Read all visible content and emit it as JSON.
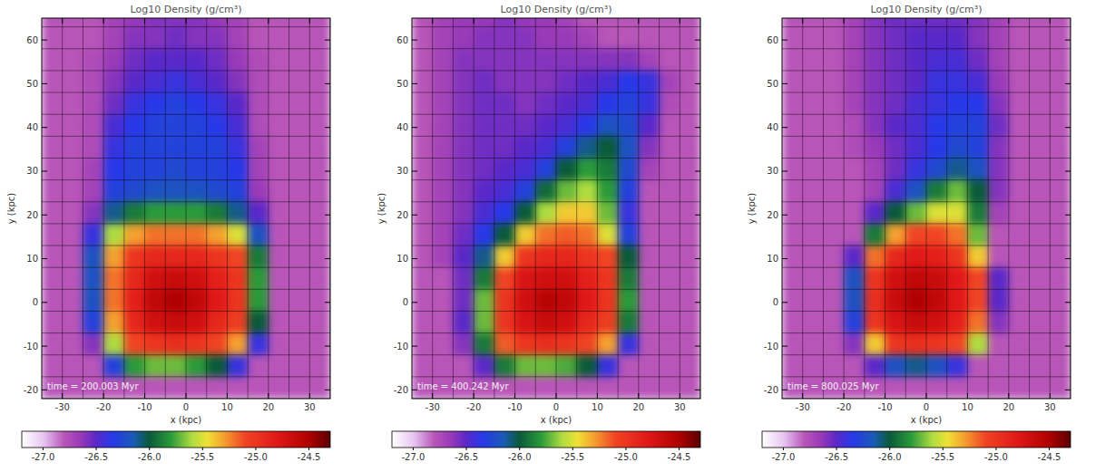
{
  "chart_data": [
    {
      "type": "heatmap",
      "title": "Log10 Density (g/cm³)",
      "annotation": "time = 200.003 Myr",
      "x_label": "x (kpc)",
      "y_label": "y (kpc)",
      "xlim": [
        -35,
        35
      ],
      "ylim": [
        -22,
        65
      ],
      "xticks": [
        -30,
        -20,
        -10,
        0,
        10,
        20,
        30
      ],
      "yticks": [
        -20,
        -10,
        0,
        10,
        20,
        30,
        40,
        50,
        60
      ],
      "cell_x": [
        -32.5,
        -27.5,
        -22.5,
        -17.5,
        -12.5,
        -7.5,
        -2.5,
        2.5,
        7.5,
        12.5,
        17.5,
        22.5,
        27.5,
        32.5
      ],
      "cell_y": [
        65.5,
        60.5,
        55.5,
        50.5,
        45.5,
        40.5,
        35.5,
        30.5,
        25.5,
        20.5,
        15.5,
        10.5,
        5.5,
        0.5,
        -4.5,
        -9.5,
        -14.5,
        -19.5
      ],
      "density": [
        [
          -26.8,
          -26.8,
          -26.8,
          -26.7,
          -26.65,
          -26.6,
          -26.6,
          -26.6,
          -26.65,
          -26.7,
          -26.8,
          -26.8,
          -26.8,
          -26.8
        ],
        [
          -26.8,
          -26.8,
          -26.8,
          -26.7,
          -26.6,
          -26.6,
          -26.55,
          -26.6,
          -26.6,
          -26.7,
          -26.8,
          -26.8,
          -26.8,
          -26.8
        ],
        [
          -26.8,
          -26.8,
          -26.75,
          -26.65,
          -26.55,
          -26.5,
          -26.5,
          -26.5,
          -26.55,
          -26.65,
          -26.75,
          -26.8,
          -26.8,
          -26.8
        ],
        [
          -26.8,
          -26.8,
          -26.75,
          -26.6,
          -26.5,
          -26.45,
          -26.4,
          -26.45,
          -26.5,
          -26.6,
          -26.75,
          -26.8,
          -26.8,
          -26.8
        ],
        [
          -26.8,
          -26.8,
          -26.75,
          -26.55,
          -26.4,
          -26.35,
          -26.3,
          -26.35,
          -26.4,
          -26.5,
          -26.75,
          -26.8,
          -26.8,
          -26.8
        ],
        [
          -26.8,
          -26.8,
          -26.75,
          -26.45,
          -26.35,
          -26.3,
          -26.3,
          -26.3,
          -26.35,
          -26.45,
          -26.75,
          -26.8,
          -26.8,
          -26.8
        ],
        [
          -26.8,
          -26.8,
          -26.75,
          -26.4,
          -26.3,
          -26.3,
          -26.3,
          -26.3,
          -26.3,
          -26.4,
          -26.7,
          -26.8,
          -26.8,
          -26.8
        ],
        [
          -26.8,
          -26.8,
          -26.7,
          -26.35,
          -26.3,
          -26.3,
          -26.25,
          -26.3,
          -26.3,
          -26.35,
          -26.7,
          -26.8,
          -26.8,
          -26.8
        ],
        [
          -26.8,
          -26.8,
          -26.7,
          -26.3,
          -26.25,
          -26.2,
          -26.2,
          -26.2,
          -26.25,
          -26.3,
          -26.65,
          -26.8,
          -26.8,
          -26.8
        ],
        [
          -26.8,
          -26.8,
          -26.6,
          -26.1,
          -25.9,
          -25.8,
          -25.8,
          -25.8,
          -25.9,
          -26.1,
          -26.5,
          -26.8,
          -26.8,
          -26.8
        ],
        [
          -26.8,
          -26.8,
          -26.4,
          -25.6,
          -25.3,
          -25.2,
          -25.2,
          -25.2,
          -25.3,
          -25.5,
          -26.2,
          -26.8,
          -26.8,
          -26.8
        ],
        [
          -26.8,
          -26.8,
          -26.2,
          -25.3,
          -25.0,
          -24.9,
          -24.9,
          -24.9,
          -25.0,
          -25.1,
          -25.9,
          -26.8,
          -26.8,
          -26.8
        ],
        [
          -26.8,
          -26.8,
          -26.2,
          -25.2,
          -24.9,
          -24.7,
          -24.65,
          -24.7,
          -24.85,
          -25.0,
          -25.8,
          -26.8,
          -26.8,
          -26.8
        ],
        [
          -26.8,
          -26.8,
          -26.2,
          -25.2,
          -24.85,
          -24.6,
          -24.5,
          -24.6,
          -24.8,
          -25.0,
          -25.8,
          -26.8,
          -26.8,
          -26.8
        ],
        [
          -26.8,
          -26.8,
          -26.3,
          -25.3,
          -24.9,
          -24.7,
          -24.65,
          -24.7,
          -24.9,
          -25.05,
          -26.0,
          -26.8,
          -26.8,
          -26.8
        ],
        [
          -26.8,
          -26.8,
          -26.6,
          -25.6,
          -25.1,
          -25.0,
          -24.95,
          -25.0,
          -25.1,
          -25.3,
          -26.4,
          -26.8,
          -26.8,
          -26.8
        ],
        [
          -26.8,
          -26.8,
          -26.8,
          -26.3,
          -25.8,
          -25.7,
          -25.7,
          -25.8,
          -26.0,
          -26.4,
          -26.8,
          -26.8,
          -26.8,
          -26.8
        ],
        [
          -26.8,
          -26.8,
          -26.8,
          -26.8,
          -26.8,
          -26.8,
          -26.8,
          -26.8,
          -26.8,
          -26.8,
          -26.8,
          -26.8,
          -26.8,
          -26.8
        ]
      ],
      "colorbar_range": [
        -27.2,
        -24.3
      ],
      "colorbar_ticks": [
        {
          "value": -27,
          "label": "-27.0"
        },
        {
          "value": -26.5,
          "label": "-26.5"
        },
        {
          "value": -26,
          "label": "-26.0"
        },
        {
          "value": -25.5,
          "label": "-25.5"
        },
        {
          "value": -25,
          "label": "-25.0"
        },
        {
          "value": -24.5,
          "label": "-24.5"
        }
      ]
    },
    {
      "type": "heatmap",
      "title": "Log10 Density (g/cm³)",
      "annotation": "time = 400.242 Myr",
      "x_label": "x (kpc)",
      "y_label": "y (kpc)",
      "xlim": [
        -35,
        35
      ],
      "ylim": [
        -22,
        65
      ],
      "xticks": [
        -30,
        -20,
        -10,
        0,
        10,
        20,
        30
      ],
      "yticks": [
        -20,
        -10,
        0,
        10,
        20,
        30,
        40,
        50,
        60
      ],
      "cell_x": [
        -32.5,
        -27.5,
        -22.5,
        -17.5,
        -12.5,
        -7.5,
        -2.5,
        2.5,
        7.5,
        12.5,
        17.5,
        22.5,
        27.5,
        32.5
      ],
      "cell_y": [
        65.5,
        60.5,
        55.5,
        50.5,
        45.5,
        40.5,
        35.5,
        30.5,
        25.5,
        20.5,
        15.5,
        10.5,
        5.5,
        0.5,
        -4.5,
        -9.5,
        -14.5,
        -19.5
      ],
      "density": [
        [
          -26.8,
          -26.7,
          -26.65,
          -26.65,
          -26.6,
          -26.65,
          -26.65,
          -26.7,
          -26.8,
          -26.8,
          -26.8,
          -26.8,
          -26.8,
          -26.8
        ],
        [
          -26.8,
          -26.7,
          -26.65,
          -26.6,
          -26.6,
          -26.6,
          -26.65,
          -26.65,
          -26.7,
          -26.8,
          -26.8,
          -26.8,
          -26.8,
          -26.8
        ],
        [
          -26.8,
          -26.7,
          -26.6,
          -26.6,
          -26.6,
          -26.6,
          -26.6,
          -26.6,
          -26.6,
          -26.6,
          -26.6,
          -26.7,
          -26.8,
          -26.8
        ],
        [
          -26.8,
          -26.7,
          -26.6,
          -26.55,
          -26.6,
          -26.6,
          -26.6,
          -26.55,
          -26.5,
          -26.45,
          -26.35,
          -26.4,
          -26.7,
          -26.8
        ],
        [
          -26.8,
          -26.7,
          -26.6,
          -26.55,
          -26.55,
          -26.6,
          -26.55,
          -26.5,
          -26.45,
          -26.35,
          -26.3,
          -26.4,
          -26.75,
          -26.8
        ],
        [
          -26.8,
          -26.7,
          -26.6,
          -26.55,
          -26.55,
          -26.55,
          -26.5,
          -26.45,
          -26.35,
          -26.2,
          -26.25,
          -26.5,
          -26.8,
          -26.8
        ],
        [
          -26.8,
          -26.7,
          -26.6,
          -26.55,
          -26.55,
          -26.5,
          -26.45,
          -26.3,
          -26.1,
          -26.0,
          -26.2,
          -26.6,
          -26.8,
          -26.8
        ],
        [
          -26.8,
          -26.7,
          -26.6,
          -26.55,
          -26.5,
          -26.45,
          -26.3,
          -26.0,
          -25.8,
          -25.9,
          -26.25,
          -26.7,
          -26.8,
          -26.8
        ],
        [
          -26.8,
          -26.7,
          -26.6,
          -26.5,
          -26.45,
          -26.3,
          -25.95,
          -25.7,
          -25.6,
          -25.8,
          -26.3,
          -26.8,
          -26.8,
          -26.8
        ],
        [
          -26.8,
          -26.7,
          -26.6,
          -26.45,
          -26.35,
          -26.0,
          -25.6,
          -25.4,
          -25.4,
          -25.7,
          -26.4,
          -26.8,
          -26.8,
          -26.8
        ],
        [
          -26.8,
          -26.7,
          -26.55,
          -26.35,
          -26.0,
          -25.4,
          -25.2,
          -25.15,
          -25.2,
          -25.5,
          -26.3,
          -26.8,
          -26.8,
          -26.8
        ],
        [
          -26.8,
          -26.7,
          -26.5,
          -26.1,
          -25.4,
          -25.0,
          -24.9,
          -24.9,
          -25.0,
          -25.1,
          -26.0,
          -26.8,
          -26.8,
          -26.8
        ],
        [
          -26.8,
          -26.8,
          -26.55,
          -25.9,
          -25.1,
          -24.75,
          -24.7,
          -24.7,
          -24.85,
          -25.0,
          -25.9,
          -26.8,
          -26.8,
          -26.8
        ],
        [
          -26.8,
          -26.8,
          -26.55,
          -25.7,
          -25.0,
          -24.7,
          -24.55,
          -24.6,
          -24.8,
          -25.0,
          -25.8,
          -26.8,
          -26.8,
          -26.8
        ],
        [
          -26.8,
          -26.8,
          -26.5,
          -25.7,
          -25.0,
          -24.75,
          -24.65,
          -24.7,
          -24.9,
          -25.05,
          -25.9,
          -26.8,
          -26.8,
          -26.8
        ],
        [
          -26.8,
          -26.8,
          -26.6,
          -25.9,
          -25.15,
          -25.0,
          -24.95,
          -25.0,
          -25.1,
          -25.3,
          -26.4,
          -26.8,
          -26.8,
          -26.8
        ],
        [
          -26.8,
          -26.8,
          -26.8,
          -26.5,
          -25.9,
          -25.7,
          -25.7,
          -25.75,
          -26.0,
          -26.4,
          -26.8,
          -26.8,
          -26.8,
          -26.8
        ],
        [
          -26.8,
          -26.8,
          -26.8,
          -26.8,
          -26.8,
          -26.8,
          -26.8,
          -26.8,
          -26.8,
          -26.8,
          -26.8,
          -26.8,
          -26.8,
          -26.8
        ]
      ],
      "colorbar_range": [
        -27.2,
        -24.3
      ],
      "colorbar_ticks": [
        {
          "value": -27,
          "label": "-27.0"
        },
        {
          "value": -26.5,
          "label": "-26.5"
        },
        {
          "value": -26,
          "label": "-26.0"
        },
        {
          "value": -25.5,
          "label": "-25.5"
        },
        {
          "value": -25,
          "label": "-25.0"
        },
        {
          "value": -24.5,
          "label": "-24.5"
        }
      ]
    },
    {
      "type": "heatmap",
      "title": "Log10 Density (g/cm³)",
      "annotation": "time = 800.025 Myr",
      "x_label": "x (kpc)",
      "y_label": "y (kpc)",
      "xlim": [
        -35,
        35
      ],
      "ylim": [
        -22,
        65
      ],
      "xticks": [
        -30,
        -20,
        -10,
        0,
        10,
        20,
        30
      ],
      "yticks": [
        -20,
        -10,
        0,
        10,
        20,
        30,
        40,
        50,
        60
      ],
      "cell_x": [
        -32.5,
        -27.5,
        -22.5,
        -17.5,
        -12.5,
        -7.5,
        -2.5,
        2.5,
        7.5,
        12.5,
        17.5,
        22.5,
        27.5,
        32.5
      ],
      "cell_y": [
        65.5,
        60.5,
        55.5,
        50.5,
        45.5,
        40.5,
        35.5,
        30.5,
        25.5,
        20.5,
        15.5,
        10.5,
        5.5,
        0.5,
        -4.5,
        -9.5,
        -14.5,
        -19.5
      ],
      "density": [
        [
          -26.8,
          -26.8,
          -26.8,
          -26.7,
          -26.6,
          -26.55,
          -26.55,
          -26.55,
          -26.55,
          -26.6,
          -26.7,
          -26.8,
          -26.8,
          -26.8
        ],
        [
          -26.8,
          -26.8,
          -26.8,
          -26.7,
          -26.6,
          -26.55,
          -26.5,
          -26.5,
          -26.5,
          -26.6,
          -26.7,
          -26.8,
          -26.8,
          -26.8
        ],
        [
          -26.8,
          -26.8,
          -26.8,
          -26.7,
          -26.6,
          -26.55,
          -26.5,
          -26.45,
          -26.45,
          -26.55,
          -26.7,
          -26.8,
          -26.8,
          -26.8
        ],
        [
          -26.8,
          -26.8,
          -26.8,
          -26.7,
          -26.6,
          -26.55,
          -26.5,
          -26.4,
          -26.4,
          -26.45,
          -26.65,
          -26.8,
          -26.8,
          -26.8
        ],
        [
          -26.8,
          -26.8,
          -26.8,
          -26.7,
          -26.6,
          -26.55,
          -26.45,
          -26.4,
          -26.35,
          -26.35,
          -26.6,
          -26.8,
          -26.8,
          -26.8
        ],
        [
          -26.8,
          -26.8,
          -26.8,
          -26.75,
          -26.6,
          -26.5,
          -26.45,
          -26.35,
          -26.3,
          -26.3,
          -26.55,
          -26.8,
          -26.8,
          -26.8
        ],
        [
          -26.8,
          -26.8,
          -26.8,
          -26.75,
          -26.65,
          -26.55,
          -26.45,
          -26.35,
          -26.25,
          -26.3,
          -26.6,
          -26.8,
          -26.8,
          -26.8
        ],
        [
          -26.8,
          -26.8,
          -26.8,
          -26.8,
          -26.7,
          -26.55,
          -26.4,
          -26.25,
          -26.1,
          -26.2,
          -26.6,
          -26.8,
          -26.8,
          -26.8
        ],
        [
          -26.8,
          -26.8,
          -26.8,
          -26.8,
          -26.7,
          -26.45,
          -26.2,
          -25.9,
          -25.7,
          -26.0,
          -26.6,
          -26.8,
          -26.8,
          -26.8
        ],
        [
          -26.8,
          -26.8,
          -26.8,
          -26.8,
          -26.5,
          -26.0,
          -25.7,
          -25.5,
          -25.5,
          -25.9,
          -26.7,
          -26.8,
          -26.8,
          -26.8
        ],
        [
          -26.8,
          -26.8,
          -26.8,
          -26.8,
          -25.9,
          -25.3,
          -25.1,
          -25.1,
          -25.2,
          -25.7,
          -26.8,
          -26.8,
          -26.8,
          -26.8
        ],
        [
          -26.8,
          -26.8,
          -26.8,
          -26.5,
          -25.2,
          -24.9,
          -24.8,
          -24.85,
          -25.0,
          -25.4,
          -26.8,
          -26.8,
          -26.8,
          -26.8
        ],
        [
          -26.8,
          -26.8,
          -26.8,
          -26.2,
          -25.0,
          -24.7,
          -24.6,
          -24.65,
          -24.8,
          -25.1,
          -26.5,
          -26.8,
          -26.8,
          -26.8
        ],
        [
          -26.8,
          -26.8,
          -26.8,
          -26.2,
          -24.95,
          -24.65,
          -24.5,
          -24.6,
          -24.8,
          -25.1,
          -26.5,
          -26.8,
          -26.8,
          -26.8
        ],
        [
          -26.8,
          -26.8,
          -26.8,
          -26.3,
          -25.0,
          -24.75,
          -24.65,
          -24.7,
          -24.85,
          -25.2,
          -26.6,
          -26.8,
          -26.8,
          -26.8
        ],
        [
          -26.8,
          -26.8,
          -26.8,
          -26.6,
          -25.4,
          -25.0,
          -24.95,
          -25.0,
          -25.1,
          -25.6,
          -26.8,
          -26.8,
          -26.8,
          -26.8
        ],
        [
          -26.8,
          -26.8,
          -26.8,
          -26.8,
          -26.5,
          -26.2,
          -26.1,
          -26.2,
          -26.4,
          -26.8,
          -26.8,
          -26.8,
          -26.8,
          -26.8
        ],
        [
          -26.8,
          -26.8,
          -26.8,
          -26.8,
          -26.8,
          -26.8,
          -26.8,
          -26.8,
          -26.8,
          -26.8,
          -26.8,
          -26.8,
          -26.8,
          -26.8
        ]
      ],
      "colorbar_range": [
        -27.2,
        -24.3
      ],
      "colorbar_ticks": [
        {
          "value": -27,
          "label": "-27.0"
        },
        {
          "value": -26.5,
          "label": "-26.5"
        },
        {
          "value": -26,
          "label": "-26.0"
        },
        {
          "value": -25.5,
          "label": "-25.5"
        },
        {
          "value": -25,
          "label": "-25.0"
        },
        {
          "value": -24.5,
          "label": "-24.5"
        }
      ]
    }
  ]
}
